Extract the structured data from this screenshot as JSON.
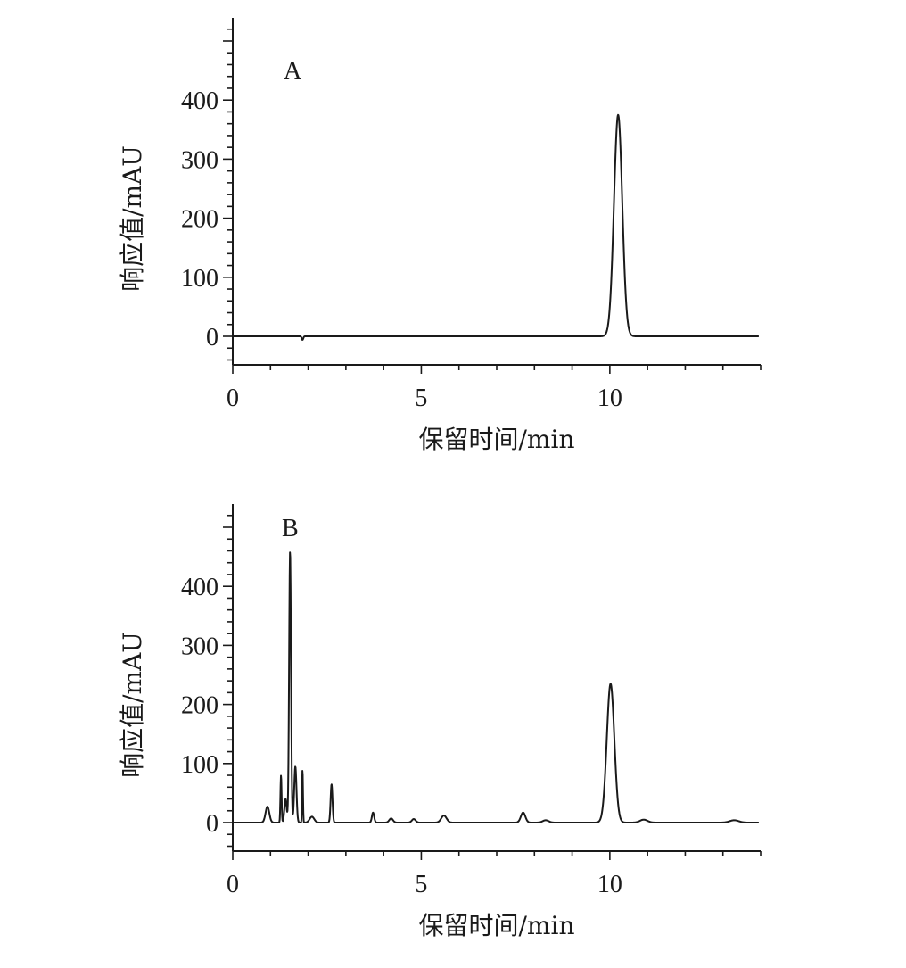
{
  "chart_data": [
    {
      "type": "line",
      "panel_label": "A",
      "title": "",
      "xlabel": "保留时间/min",
      "ylabel": "响应值/mAU",
      "xlim": [
        0,
        14
      ],
      "ylim": [
        -48,
        540
      ],
      "xticks": [
        "0",
        "5",
        "10"
      ],
      "yticks": [
        "0",
        "100",
        "200",
        "300",
        "400"
      ],
      "grid": false,
      "peaks": [
        {
          "x": 1.85,
          "y": -6,
          "sigma": 0.02
        },
        {
          "x": 10.22,
          "y": 375,
          "sigma": 0.11
        }
      ]
    },
    {
      "type": "line",
      "panel_label": "B",
      "title": "",
      "xlabel": "保留时间/min",
      "ylabel": "响应值/mAU",
      "xlim": [
        0,
        14
      ],
      "ylim": [
        -48,
        540
      ],
      "xticks": [
        "0",
        "5",
        "10"
      ],
      "yticks": [
        "0",
        "100",
        "200",
        "300",
        "400"
      ],
      "grid": false,
      "peaks": [
        {
          "x": 0.92,
          "y": 27,
          "sigma": 0.05
        },
        {
          "x": 1.28,
          "y": 80,
          "sigma": 0.015
        },
        {
          "x": 1.4,
          "y": 40,
          "sigma": 0.03
        },
        {
          "x": 1.52,
          "y": 460,
          "sigma": 0.025
        },
        {
          "x": 1.66,
          "y": 95,
          "sigma": 0.03
        },
        {
          "x": 1.85,
          "y": 90,
          "sigma": 0.012
        },
        {
          "x": 2.1,
          "y": 10,
          "sigma": 0.06
        },
        {
          "x": 2.62,
          "y": 65,
          "sigma": 0.025
        },
        {
          "x": 3.72,
          "y": 17,
          "sigma": 0.03
        },
        {
          "x": 4.2,
          "y": 7,
          "sigma": 0.05
        },
        {
          "x": 4.8,
          "y": 6,
          "sigma": 0.05
        },
        {
          "x": 5.6,
          "y": 12,
          "sigma": 0.07
        },
        {
          "x": 7.7,
          "y": 17,
          "sigma": 0.06
        },
        {
          "x": 8.3,
          "y": 4,
          "sigma": 0.08
        },
        {
          "x": 10.02,
          "y": 235,
          "sigma": 0.1
        },
        {
          "x": 10.9,
          "y": 5,
          "sigma": 0.1
        },
        {
          "x": 13.3,
          "y": 4,
          "sigma": 0.12
        }
      ]
    }
  ]
}
